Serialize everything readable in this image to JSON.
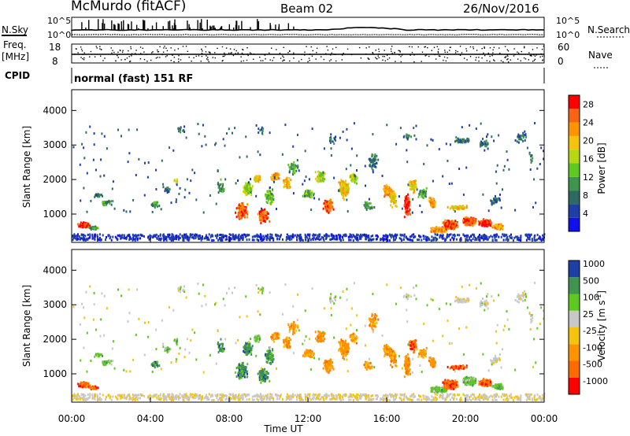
{
  "header": {
    "station": "McMurdo (fitACF)",
    "beam": "Beam 02",
    "date": "26/Nov/2016"
  },
  "summary": {
    "nsky_label": "N.Sky",
    "nsearch_label": "N.Search",
    "freq_label_1": "Freq.",
    "freq_label_2": "[MHz]",
    "nave_label": "Nave",
    "cpid_label": "CPID",
    "cpid_value": "normal (fast) 151 RF",
    "noise_ticks_left": [
      "10^5",
      "10^0"
    ],
    "noise_ticks_right": [
      "10^5",
      "10^0"
    ],
    "freq_ticks": [
      "18",
      "8"
    ],
    "nave_ticks": [
      "60",
      "0"
    ]
  },
  "colors": {
    "power": [
      "#1010ee",
      "#1e3fa8",
      "#2e6a62",
      "#3f9450",
      "#5fc820",
      "#b6d813",
      "#f4c40c",
      "#ff9400",
      "#f76414",
      "#ff0000"
    ],
    "velocity": [
      "#ff0000",
      "#ff6a00",
      "#ff9400",
      "#f4c40c",
      "#c8c8c8",
      "#5fc820",
      "#3f9450",
      "#1e3fa8"
    ]
  },
  "chart_data": [
    {
      "type": "heatmap",
      "title": "Power",
      "ylabel": "Slant Range [km]",
      "yticks": [
        "1000",
        "2000",
        "3000",
        "4000"
      ],
      "ylim": [
        180,
        4600
      ],
      "xlim": [
        0,
        24
      ],
      "colorbar_label": "Power [dB]",
      "colorbar_ticks": [
        "4",
        "8",
        "12",
        "16",
        "20",
        "24",
        "28"
      ],
      "colorbar_range": [
        0,
        30
      ]
    },
    {
      "type": "heatmap",
      "title": "Velocity",
      "ylabel": "Slant Range [km]",
      "yticks": [
        "1000",
        "2000",
        "3000",
        "4000"
      ],
      "ylim": [
        180,
        4600
      ],
      "xlim": [
        0,
        24
      ],
      "xlabel": "Time UT",
      "xticks": [
        "00:00",
        "04:00",
        "08:00",
        "12:00",
        "16:00",
        "20:00",
        "00:00"
      ],
      "colorbar_label": "Velocity [m s",
      "colorbar_label_sup": "-1",
      "colorbar_label_end": "]",
      "colorbar_ticks": [
        "-1000",
        "-500",
        "-100",
        "-25",
        "25",
        "100",
        "500",
        "1000"
      ]
    }
  ]
}
